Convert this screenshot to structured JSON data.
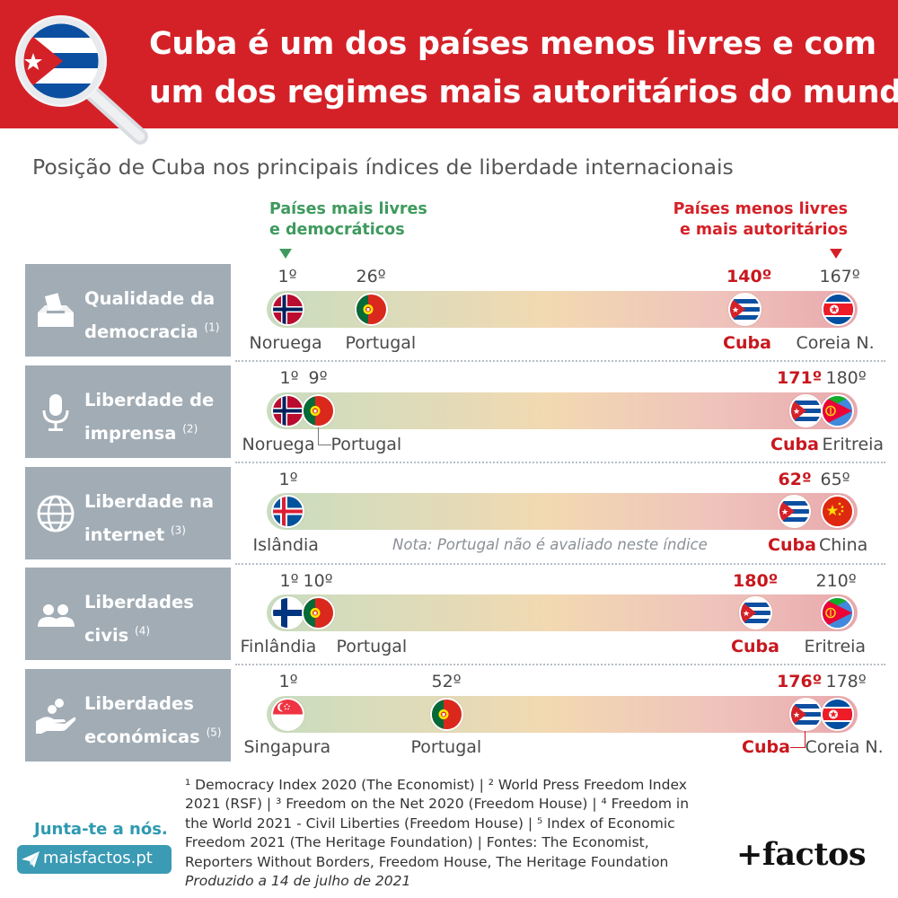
{
  "title_line1": "Cuba é um dos países menos livres e com",
  "title_line2": "um dos regimes mais autoritários do mundo",
  "subtitle": "Posição de Cuba nos principais índices de liberdade internacionais",
  "legend_free_line1": "Países mais livres",
  "legend_free_line2": "e democráticos",
  "legend_unfree_line1": "Países menos livres",
  "legend_unfree_line2": "e mais autoritários",
  "colors": {
    "accent_red": "#d42128",
    "green": "#3f9a5e",
    "label_bg": "#a1acb5",
    "link_blue": "#3b9ab4"
  },
  "chart_data": {
    "type": "ranking-strip",
    "rows": [
      {
        "label1": "Qualidade da",
        "label2": "democracia",
        "note_ref": "(1)",
        "icon": "ballot-box-icon",
        "markers": [
          {
            "rank": "1º",
            "country": "Noruega",
            "flag": "norway"
          },
          {
            "rank": "26º",
            "country": "Portugal",
            "flag": "portugal"
          },
          {
            "rank": "140º",
            "country": "Cuba",
            "flag": "cuba",
            "highlight": true
          },
          {
            "rank": "167º",
            "country": "Coreia N.",
            "flag": "north-korea"
          }
        ]
      },
      {
        "label1": "Liberdade de",
        "label2": "imprensa",
        "note_ref": "(2)",
        "icon": "microphone-icon",
        "markers": [
          {
            "rank": "1º",
            "country": "Noruega",
            "flag": "norway"
          },
          {
            "rank": "9º",
            "country": "Portugal",
            "flag": "portugal"
          },
          {
            "rank": "171º",
            "country": "Cuba",
            "flag": "cuba",
            "highlight": true
          },
          {
            "rank": "180º",
            "country": "Eritreia",
            "flag": "eritrea"
          }
        ]
      },
      {
        "label1": "Liberdade na",
        "label2": "internet",
        "note_ref": "(3)",
        "icon": "globe-icon",
        "note": "Nota: Portugal não é avaliado neste índice",
        "markers": [
          {
            "rank": "1º",
            "country": "Islândia",
            "flag": "iceland"
          },
          {
            "rank": "62º",
            "country": "Cuba",
            "flag": "cuba",
            "highlight": true
          },
          {
            "rank": "65º",
            "country": "China",
            "flag": "china"
          }
        ]
      },
      {
        "label1": "Liberdades",
        "label2": "civis",
        "note_ref": "(4)",
        "icon": "people-icon",
        "markers": [
          {
            "rank": "1º",
            "country": "Finlândia",
            "flag": "finland"
          },
          {
            "rank": "10º",
            "country": "Portugal",
            "flag": "portugal"
          },
          {
            "rank": "180º",
            "country": "Cuba",
            "flag": "cuba",
            "highlight": true
          },
          {
            "rank": "210º",
            "country": "Eritreia",
            "flag": "eritrea"
          }
        ]
      },
      {
        "label1": "Liberdades",
        "label2": "económicas",
        "note_ref": "(5)",
        "icon": "hand-coins-icon",
        "markers": [
          {
            "rank": "1º",
            "country": "Singapura",
            "flag": "singapore"
          },
          {
            "rank": "52º",
            "country": "Portugal",
            "flag": "portugal"
          },
          {
            "rank": "176º",
            "country": "Cuba",
            "flag": "cuba",
            "highlight": true
          },
          {
            "rank": "178º",
            "country": "Coreia N.",
            "flag": "north-korea"
          }
        ]
      }
    ]
  },
  "footnote_line1": "¹ Democracy Index 2020 (The Economist) | ² World Press Freedom Index",
  "footnote_line2": "2021 (RSF) | ³ Freedom on the Net 2020 (Freedom House) | ⁴ Freedom in",
  "footnote_line3": "the World 2021 - Civil Liberties (Freedom House) | ⁵ Index of Economic",
  "footnote_line4": "Freedom 2021 (The Heritage Foundation) | Fontes: The Economist,",
  "footnote_line5": "Reporters Without Borders, Freedom House, The Heritage Foundation",
  "footnote_produced": "Produzido a 14 de julho de 2021",
  "join_text": "Junta-te a nós.",
  "site_label": "maisfactos.pt",
  "brand": "+factos"
}
